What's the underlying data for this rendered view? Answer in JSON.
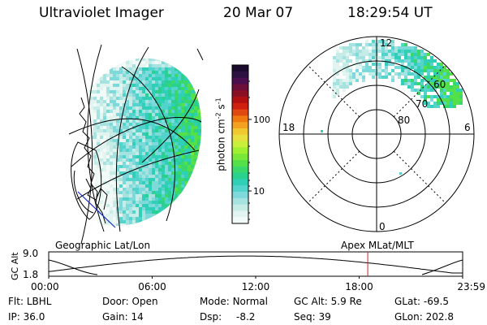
{
  "header": {
    "instrument": "Ultraviolet Imager",
    "date": "20 Mar 07",
    "time": "18:29:54 UT"
  },
  "panels": {
    "left_caption": "Geographic Lat/Lon",
    "right_caption": "Apex MLat/MLT",
    "polar_labels": {
      "top": "12",
      "left": "18",
      "right": "6",
      "bottom": "0"
    },
    "latitude_rings": [
      "60",
      "70",
      "80"
    ]
  },
  "colorbar": {
    "unit": "photon cm",
    "unit_exp1": "-2",
    "unit_mid": "s",
    "unit_exp2": "-1",
    "ticks": [
      "100",
      "10"
    ],
    "colors": [
      "#1a0a2e",
      "#2b1040",
      "#4a0d4e",
      "#6b0f3a",
      "#8a0f22",
      "#b01010",
      "#d02010",
      "#e04a10",
      "#f07a10",
      "#f4a020",
      "#f2c830",
      "#e8e040",
      "#c8f03a",
      "#a0f032",
      "#7ae83a",
      "#54e048",
      "#3ad86a",
      "#2ad08e",
      "#30d0b8",
      "#52d4cc",
      "#7edada",
      "#a6e2e0",
      "#c6ece8",
      "#e2f4f0",
      "#f2faf8"
    ]
  },
  "timeline": {
    "y_label": "GC Alt",
    "y_ticks": [
      "9.0",
      "1.8"
    ],
    "x_ticks": [
      "00:00",
      "06:00",
      "12:00",
      "18:00",
      "23:59"
    ],
    "marker_time": "18:29:54",
    "marker_color": "#cc2222"
  },
  "info": {
    "filter_label": "Flt:",
    "filter_value": "LBHL",
    "ip_label": "IP:",
    "ip_value": "36.0",
    "door_label": "Door:",
    "door_value": "Open",
    "gain_label": "Gain:",
    "gain_value": "14",
    "mode_label": "Mode:",
    "mode_value": "Normal",
    "dsp_label": "Dsp:",
    "dsp_value": "-8.2",
    "gcalt_label": "GC Alt:",
    "gcalt_value": "5.9 Re",
    "seq_label": "Seq:",
    "seq_value": "39",
    "glat_label": "GLat:",
    "glat_value": "-69.5",
    "glon_label": "GLon:",
    "glon_value": "202.8"
  }
}
